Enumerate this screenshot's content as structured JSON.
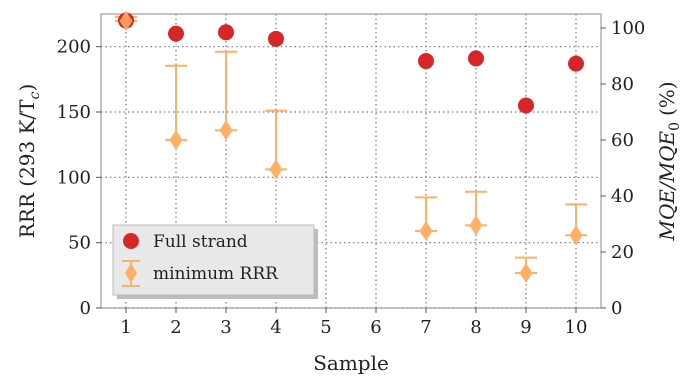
{
  "chart_data": {
    "type": "scatter",
    "xlabel": "Sample",
    "ylabel_left": "RRR (293 K/T",
    "ylabel_left_sub": "c",
    "ylabel_right": "MQE/MQE",
    "ylabel_right_sub": "0",
    "ylabel_right_unit": "(%)",
    "xlim": [
      0.5,
      10.5
    ],
    "ylim_left": [
      0,
      225
    ],
    "ylim_right": [
      0,
      105
    ],
    "x_ticks": [
      "1",
      "2",
      "3",
      "4",
      "5",
      "6",
      "7",
      "8",
      "9",
      "10"
    ],
    "y_ticks_left": [
      "0",
      "50",
      "100",
      "150",
      "200"
    ],
    "y_ticks_right": [
      "0",
      "20",
      "40",
      "60",
      "80",
      "100"
    ],
    "grid": true,
    "legend_position": "lower-left",
    "series": [
      {
        "name": "Full strand",
        "axis": "left",
        "marker": "circle",
        "color": "#d62728",
        "points": [
          {
            "x": 1,
            "y": 220
          },
          {
            "x": 2,
            "y": 210
          },
          {
            "x": 3,
            "y": 211
          },
          {
            "x": 4,
            "y": 206
          },
          {
            "x": 7,
            "y": 189
          },
          {
            "x": 8,
            "y": 191
          },
          {
            "x": 9,
            "y": 155
          },
          {
            "x": 10,
            "y": 187
          }
        ]
      },
      {
        "name": "minimum RRR",
        "axis": "right",
        "marker": "diamond",
        "color": "#ffb067",
        "points": [
          {
            "x": 1,
            "y": 102.5,
            "yerr_low": 102.5,
            "yerr_high": 104
          },
          {
            "x": 2,
            "y": 60,
            "yerr_low": 60,
            "yerr_high": 86.5
          },
          {
            "x": 3,
            "y": 63.5,
            "yerr_low": 63.5,
            "yerr_high": 91.5
          },
          {
            "x": 4,
            "y": 49.5,
            "yerr_low": 49.5,
            "yerr_high": 70.5
          },
          {
            "x": 7,
            "y": 27.5,
            "yerr_low": 27.5,
            "yerr_high": 39.5
          },
          {
            "x": 8,
            "y": 29.5,
            "yerr_low": 29.5,
            "yerr_high": 41.5
          },
          {
            "x": 9,
            "y": 12.5,
            "yerr_low": 12.5,
            "yerr_high": 18
          },
          {
            "x": 10,
            "y": 26,
            "yerr_low": 26,
            "yerr_high": 37
          }
        ]
      }
    ]
  }
}
